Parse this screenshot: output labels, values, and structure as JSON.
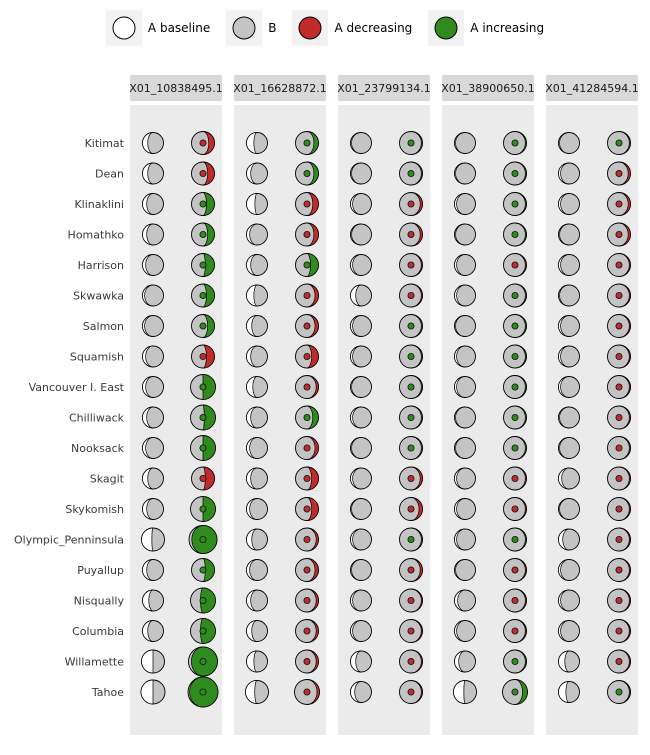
{
  "chart_data": {
    "type": "moon-grid",
    "glyph": "paired moon charts: left moon = white 'A baseline' fraction over grey 'B'; right moon = colored fraction (red 'A decreasing' / green 'A increasing') over grey, with a center dot showing direction color",
    "facets": [
      "X01_10838495.1",
      "X01_16628872.1",
      "X01_23799134.1",
      "X01_38900650.1",
      "X01_41284594.1"
    ],
    "rows": [
      "Kitimat",
      "Dean",
      "Klinaklini",
      "Homathko",
      "Harrison",
      "Skwawka",
      "Salmon",
      "Squamish",
      "Vancouver I. East",
      "Chilliwack",
      "Nooksack",
      "Skagit",
      "Skykomish",
      "Olympic_Penninsula",
      "Puyallup",
      "Nisqually",
      "Columbia",
      "Willamette",
      "Tahoe"
    ],
    "legend": [
      {
        "label": "A baseline",
        "fill": "#FFFFFF"
      },
      {
        "label": "B",
        "fill": "#C4C4C4"
      },
      {
        "label": "A decreasing",
        "fill": "#C22B2B"
      },
      {
        "label": "A increasing",
        "fill": "#2F8B1D"
      }
    ],
    "colors": {
      "grey": "#C4C4C4",
      "red": "#C22B2B",
      "green": "#2F8B1D",
      "panel": "#EBEBEB",
      "strip": "#D9D9D9",
      "outline": "#000000",
      "label": "#3a3a3a"
    },
    "cell_format": "[baseline_fraction, direction(inc|dec), change_fraction, right_radius?, left_radius?]",
    "cells": [
      [
        [
          0.25,
          "dec",
          0.25
        ],
        [
          0.35,
          "inc",
          0.2
        ],
        [
          0.05,
          "inc",
          0.05
        ],
        [
          0.05,
          "inc",
          0.05
        ],
        [
          0.05,
          "inc",
          0.05
        ]
      ],
      [
        [
          0.25,
          "dec",
          0.3
        ],
        [
          0.2,
          "inc",
          0.2
        ],
        [
          0.05,
          "inc",
          0.05
        ],
        [
          0.05,
          "inc",
          0.05
        ],
        [
          0.1,
          "dec",
          0.1
        ]
      ],
      [
        [
          0.2,
          "inc",
          0.35
        ],
        [
          0.4,
          "dec",
          0.25
        ],
        [
          0.1,
          "dec",
          0.1
        ],
        [
          0.1,
          "inc",
          0.05
        ],
        [
          0.1,
          "dec",
          0.1
        ]
      ],
      [
        [
          0.2,
          "inc",
          0.3
        ],
        [
          0.15,
          "dec",
          0.2
        ],
        [
          0.05,
          "dec",
          0.1
        ],
        [
          0.05,
          "inc",
          0.05
        ],
        [
          0.05,
          "dec",
          0.1
        ]
      ],
      [
        [
          0.15,
          "inc",
          0.4
        ],
        [
          0.2,
          "inc",
          0.35
        ],
        [
          0.1,
          "dec",
          0.05
        ],
        [
          0.1,
          "dec",
          0.05
        ],
        [
          0.1,
          "dec",
          0.05
        ]
      ],
      [
        [
          0.1,
          "inc",
          0.35
        ],
        [
          0.35,
          "dec",
          0.15
        ],
        [
          0.25,
          "dec",
          0.05
        ],
        [
          0.1,
          "inc",
          0.05
        ],
        [
          0.05,
          "dec",
          0.05
        ]
      ],
      [
        [
          0.1,
          "inc",
          0.3
        ],
        [
          0.25,
          "dec",
          0.15
        ],
        [
          0.1,
          "inc",
          0.05
        ],
        [
          0.05,
          "inc",
          0.05
        ],
        [
          0.1,
          "dec",
          0.05
        ]
      ],
      [
        [
          0.15,
          "dec",
          0.35
        ],
        [
          0.2,
          "dec",
          0.3
        ],
        [
          0.1,
          "inc",
          0.05
        ],
        [
          0.1,
          "inc",
          0.05
        ],
        [
          0.1,
          "dec",
          0.05
        ]
      ],
      [
        [
          0.15,
          "inc",
          0.5,
          12.5
        ],
        [
          0.3,
          "dec",
          0.1
        ],
        [
          0.05,
          "inc",
          0.05
        ],
        [
          0.1,
          "inc",
          0.05
        ],
        [
          0.1,
          "dec",
          0.05
        ]
      ],
      [
        [
          0.2,
          "inc",
          0.45,
          12.5
        ],
        [
          0.2,
          "inc",
          0.25
        ],
        [
          0.1,
          "inc",
          0.05
        ],
        [
          0.05,
          "inc",
          0.05
        ],
        [
          0.05,
          "dec",
          0.05
        ]
      ],
      [
        [
          0.15,
          "inc",
          0.5,
          12.5
        ],
        [
          0.15,
          "dec",
          0.15
        ],
        [
          0.05,
          "inc",
          0.05
        ],
        [
          0.05,
          "inc",
          0.05
        ],
        [
          0.05,
          "dec",
          0.05
        ]
      ],
      [
        [
          0.25,
          "dec",
          0.4
        ],
        [
          0.2,
          "dec",
          0.3
        ],
        [
          0.1,
          "dec",
          0.1
        ],
        [
          0.1,
          "dec",
          0.05
        ],
        [
          0.15,
          "dec",
          0.05
        ]
      ],
      [
        [
          0.2,
          "inc",
          0.5,
          12.5
        ],
        [
          0.15,
          "dec",
          0.3
        ],
        [
          0.05,
          "dec",
          0.15
        ],
        [
          0.1,
          "dec",
          0.05
        ],
        [
          0.05,
          "dec",
          0.05
        ]
      ],
      [
        [
          0.45,
          "inc",
          0.9,
          14,
          11.5
        ],
        [
          0.25,
          "dec",
          0.1
        ],
        [
          0.1,
          "inc",
          0.05
        ],
        [
          0.1,
          "inc",
          0.05
        ],
        [
          0.2,
          "dec",
          0.05
        ]
      ],
      [
        [
          0.2,
          "inc",
          0.4
        ],
        [
          0.15,
          "dec",
          0.15
        ],
        [
          0.05,
          "dec",
          0.1
        ],
        [
          0.05,
          "dec",
          0.05
        ],
        [
          0.1,
          "dec",
          0.05
        ]
      ],
      [
        [
          0.3,
          "inc",
          0.6,
          12.5
        ],
        [
          0.2,
          "dec",
          0.1
        ],
        [
          0.1,
          "dec",
          0.05
        ],
        [
          0.15,
          "dec",
          0.05
        ],
        [
          0.1,
          "dec",
          0.05
        ]
      ],
      [
        [
          0.25,
          "inc",
          0.6,
          12.5
        ],
        [
          0.25,
          "dec",
          0.1
        ],
        [
          0.1,
          "dec",
          0.05
        ],
        [
          0.1,
          "dec",
          0.05
        ],
        [
          0.1,
          "dec",
          0.05
        ]
      ],
      [
        [
          0.5,
          "inc",
          0.9,
          14.5,
          11.5
        ],
        [
          0.35,
          "dec",
          0.1
        ],
        [
          0.25,
          "dec",
          0.05
        ],
        [
          0.2,
          "inc",
          0.05
        ],
        [
          0.3,
          "dec",
          0.05
        ]
      ],
      [
        [
          0.5,
          "inc",
          0.95,
          15,
          12
        ],
        [
          0.4,
          "dec",
          0.1,
          12.5,
          11.5
        ],
        [
          0.2,
          "dec",
          0.05
        ],
        [
          0.45,
          "inc",
          0.2,
          12.5,
          11.5
        ],
        [
          0.35,
          "inc",
          0.05
        ]
      ]
    ]
  }
}
